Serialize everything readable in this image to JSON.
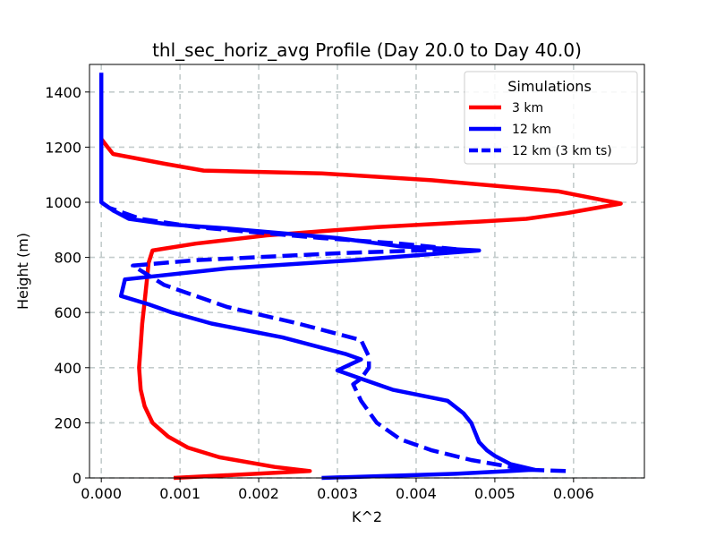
{
  "chart_data": {
    "type": "line",
    "title": "thl_sec_horiz_avg Profile (Day 20.0 to Day 40.0)",
    "xlabel": "K^2",
    "ylabel": "Height (m)",
    "xlim": [
      -0.00015,
      0.0069
    ],
    "ylim": [
      0,
      1500
    ],
    "x_ticks": [
      0.0,
      0.001,
      0.002,
      0.003,
      0.004,
      0.005,
      0.006
    ],
    "x_tick_labels": [
      "0.000",
      "0.001",
      "0.002",
      "0.003",
      "0.004",
      "0.005",
      "0.006"
    ],
    "y_ticks": [
      0,
      200,
      400,
      600,
      800,
      1000,
      1200,
      1400
    ],
    "y_tick_labels": [
      "0",
      "200",
      "400",
      "600",
      "800",
      "1000",
      "1200",
      "1400"
    ],
    "grid": true,
    "legend": {
      "title": "Simulations",
      "placement": "top-right"
    },
    "series": [
      {
        "name": "3 km",
        "color": "#ff0000",
        "style": "solid",
        "points": [
          [
            0.00092,
            0
          ],
          [
            0.00265,
            25
          ],
          [
            0.0022,
            40
          ],
          [
            0.0015,
            75
          ],
          [
            0.0011,
            110
          ],
          [
            0.00085,
            150
          ],
          [
            0.00065,
            200
          ],
          [
            0.00055,
            260
          ],
          [
            0.0005,
            320
          ],
          [
            0.00048,
            400
          ],
          [
            0.0005,
            480
          ],
          [
            0.00052,
            560
          ],
          [
            0.00055,
            640
          ],
          [
            0.00058,
            720
          ],
          [
            0.0006,
            780
          ],
          [
            0.00065,
            825
          ],
          [
            0.0012,
            850
          ],
          [
            0.0021,
            880
          ],
          [
            0.0035,
            910
          ],
          [
            0.0048,
            930
          ],
          [
            0.0054,
            940
          ],
          [
            0.0059,
            960
          ],
          [
            0.0066,
            995
          ],
          [
            0.0058,
            1040
          ],
          [
            0.0042,
            1080
          ],
          [
            0.0028,
            1105
          ],
          [
            0.0013,
            1115
          ],
          [
            0.0008,
            1140
          ],
          [
            0.00015,
            1175
          ],
          [
            8e-05,
            1200
          ],
          [
            0.0,
            1230
          ]
        ]
      },
      {
        "name": "12 km",
        "color": "#0000ff",
        "style": "solid",
        "points": [
          [
            0.0028,
            0
          ],
          [
            0.0045,
            15
          ],
          [
            0.0052,
            25
          ],
          [
            0.0055,
            30
          ],
          [
            0.0052,
            50
          ],
          [
            0.005,
            80
          ],
          [
            0.0049,
            100
          ],
          [
            0.0048,
            130
          ],
          [
            0.0047,
            200
          ],
          [
            0.0046,
            235
          ],
          [
            0.0044,
            280
          ],
          [
            0.0037,
            320
          ],
          [
            0.0033,
            360
          ],
          [
            0.003,
            390
          ],
          [
            0.0033,
            430
          ],
          [
            0.0031,
            450
          ],
          [
            0.0027,
            480
          ],
          [
            0.0023,
            510
          ],
          [
            0.0014,
            560
          ],
          [
            0.0009,
            600
          ],
          [
            0.0006,
            630
          ],
          [
            0.00025,
            660
          ],
          [
            0.0003,
            720
          ],
          [
            0.0016,
            760
          ],
          [
            0.0032,
            790
          ],
          [
            0.0048,
            825
          ],
          [
            0.0038,
            840
          ],
          [
            0.003,
            870
          ],
          [
            0.0022,
            890
          ],
          [
            0.0016,
            905
          ],
          [
            0.00085,
            920
          ],
          [
            0.00035,
            940
          ],
          [
            0.00015,
            970
          ],
          [
            0.0,
            1000
          ],
          [
            0.0,
            1100
          ],
          [
            0.0,
            1200
          ],
          [
            0.0,
            1300
          ],
          [
            0.0,
            1400
          ],
          [
            0.0,
            1470
          ]
        ]
      },
      {
        "name": "12 km (3 km ts)",
        "color": "#0000ff",
        "style": "dashed",
        "points": [
          [
            0.0059,
            25
          ],
          [
            0.0054,
            30
          ],
          [
            0.005,
            50
          ],
          [
            0.0047,
            65
          ],
          [
            0.0042,
            100
          ],
          [
            0.0038,
            140
          ],
          [
            0.0035,
            200
          ],
          [
            0.0033,
            280
          ],
          [
            0.0032,
            340
          ],
          [
            0.0033,
            360
          ],
          [
            0.0034,
            400
          ],
          [
            0.0034,
            440
          ],
          [
            0.0033,
            500
          ],
          [
            0.0025,
            560
          ],
          [
            0.0016,
            620
          ],
          [
            0.0008,
            700
          ],
          [
            0.0004,
            770
          ],
          [
            0.0012,
            790
          ],
          [
            0.003,
            815
          ],
          [
            0.0045,
            830
          ],
          [
            0.0038,
            850
          ],
          [
            0.0028,
            870
          ],
          [
            0.002,
            890
          ],
          [
            0.0012,
            910
          ],
          [
            0.0005,
            940
          ],
          [
            0.0001,
            980
          ],
          [
            0.0,
            1000
          ]
        ]
      }
    ]
  }
}
